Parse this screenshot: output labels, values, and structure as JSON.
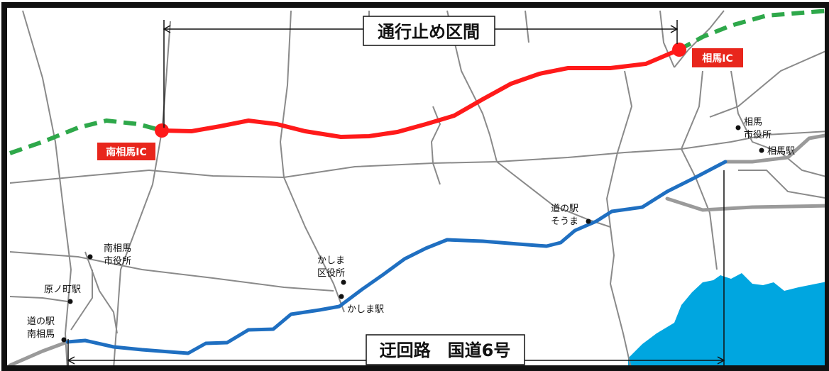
{
  "map": {
    "closure_section_label": "通行止め区間",
    "detour_label": "迂回路　国道6号",
    "interchanges": {
      "minamisoma": "南相馬IC",
      "soma": "相馬IC"
    },
    "places": {
      "soma_city_hall_line1": "相馬",
      "soma_city_hall_line2": "市役所",
      "soma_station": "相馬駅",
      "michinoeki_soma_line1": "道の駅",
      "michinoeki_soma_line2": "そうま",
      "minamisoma_city_hall_line1": "南相馬",
      "minamisoma_city_hall_line2": "市役所",
      "kashima_ward_office_line1": "かしま",
      "kashima_ward_office_line2": "区役所",
      "kashima_station": "かしま駅",
      "haranomachi_station": "原ノ町駅",
      "michinoeki_minamisoma_line1": "道の駅",
      "michinoeki_minamisoma_line2": "南相馬"
    },
    "colors": {
      "closed_route": "#ff1a1a",
      "expressway_open": "#2ea84a",
      "detour_route": "#1f6fc1",
      "local_road": "#8a8a8a",
      "major_road": "#9a9a9a",
      "sea": "#00a6e0",
      "ic_label_bg": "#e8261c",
      "frame": "#111111"
    }
  }
}
